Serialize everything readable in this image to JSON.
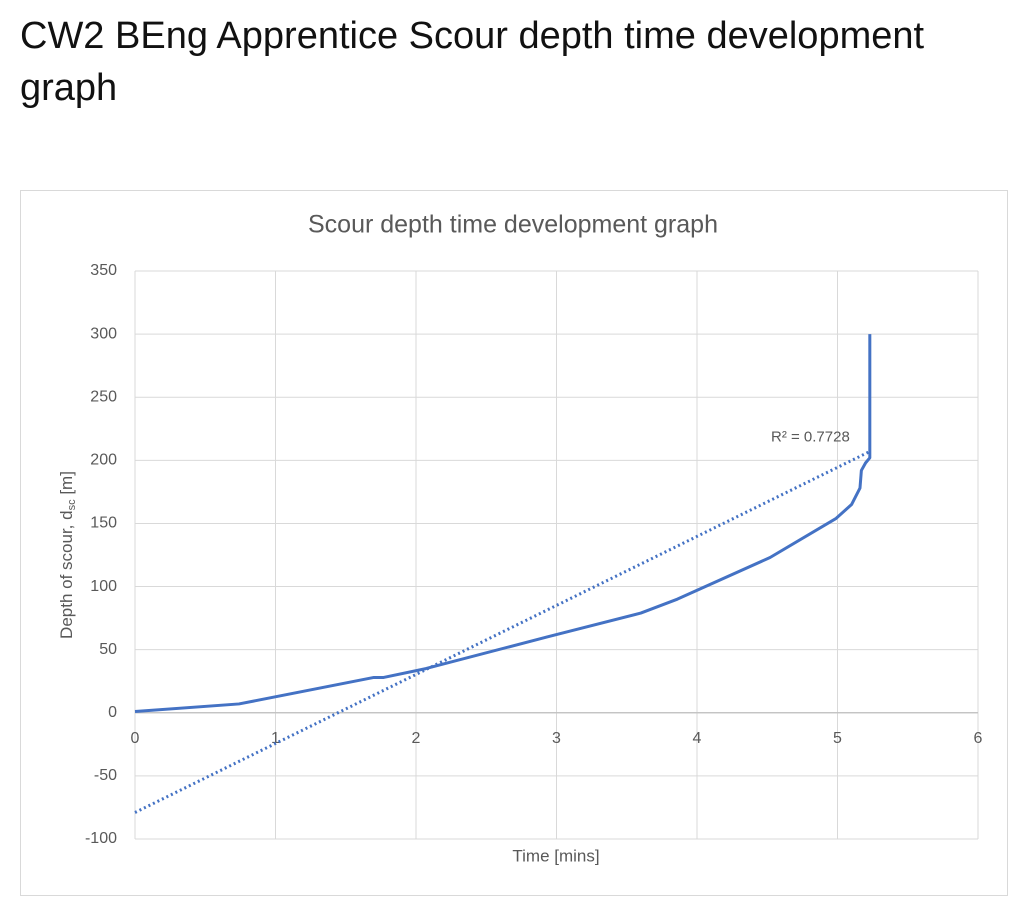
{
  "page_title": "CW2 BEng Apprentice Scour depth time development graph",
  "chart_data": {
    "type": "line",
    "title": "Scour depth time development graph",
    "x_label": "Time [mins]",
    "y_label": "Depth of scour, d",
    "y_label_sub": "sc",
    "y_label_suffix": " [m]",
    "xlim": [
      0,
      6
    ],
    "xticks": [
      0,
      1,
      2,
      3,
      4,
      5,
      6
    ],
    "ylim": [
      -100,
      350
    ],
    "yticks": [
      -100,
      -50,
      0,
      50,
      100,
      150,
      200,
      250,
      300,
      350
    ],
    "grid": true,
    "series": [
      {
        "color": "#4472c4",
        "x": [
          0,
          0.74,
          1.7,
          1.77,
          2.07,
          2.93,
          3.6,
          3.86,
          4.52,
          4.99,
          5.1,
          5.16,
          5.17,
          5.2,
          5.23,
          5.23,
          5.23
        ],
        "values": [
          1,
          7,
          28,
          28,
          35,
          60,
          79,
          90,
          123,
          154,
          165,
          178,
          192,
          198,
          202,
          220,
          300
        ]
      }
    ],
    "trendline": {
      "color": "#4472c4",
      "x": [
        0,
        5.23
      ],
      "values": [
        -79,
        207
      ],
      "label": "R² = 0.7728"
    }
  }
}
